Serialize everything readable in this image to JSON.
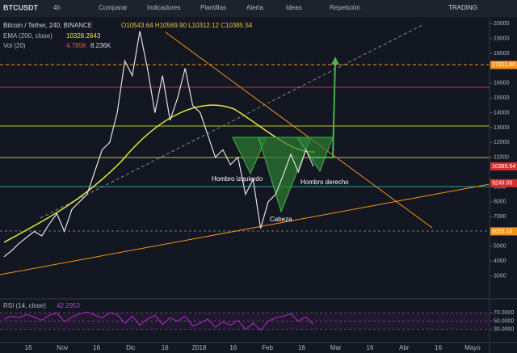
{
  "toolbar": {
    "symbol": "BTCUSDT",
    "interval": "4h",
    "items": [
      "Comparar",
      "Indicadores",
      "Plantillas",
      "Alerta",
      "Ideas",
      "Repetición"
    ],
    "brand": "TRADING"
  },
  "legend": {
    "title": "Bitcoin / Tether, 240, BINANCE",
    "ohlc": "O10543.64 H10569.90 L10312.12 C10385.54",
    "ema": "EMA (200, close)",
    "ema_value": "10328.2643",
    "vol": "Vol (20)",
    "vol_values": [
      "4.785K",
      "8.236K"
    ]
  },
  "annotations": [
    "Hombro izquierdo",
    "Cabeza",
    "Hombro derecho"
  ],
  "time_axis": [
    "16",
    "Nov",
    "16",
    "Dic",
    "16",
    "2018",
    "16",
    "Feb",
    "16",
    "Mar",
    "16",
    "Abr",
    "16",
    "Mayo"
  ],
  "chart_data": [
    {
      "type": "line",
      "color": "#e0e0e0",
      "ylim": [
        2000,
        20400
      ],
      "yticks": [
        20000,
        19000,
        18000,
        16000,
        15000,
        14000,
        13000,
        12000,
        11000,
        9000,
        8000,
        7000,
        5000,
        4000,
        3000
      ],
      "price_labels": [
        {
          "value": 17221,
          "label": "17221.00"
        },
        {
          "value": 10385.54,
          "label": "10385.54"
        },
        {
          "value": 9249,
          "label": "9249.00"
        },
        {
          "value": 6005.14,
          "label": "6005.14"
        }
      ],
      "values": [
        4300,
        4700,
        5200,
        5600,
        6000,
        5700,
        6500,
        7200,
        6000,
        7500,
        8000,
        8500,
        10000,
        11500,
        12000,
        14000,
        17500,
        16500,
        19500,
        17000,
        14000,
        16500,
        13500,
        15000,
        17000,
        14500,
        14000,
        12500,
        11000,
        11500,
        10500,
        11000,
        8500,
        9500,
        6200,
        8000,
        8500,
        9800,
        11200,
        10000,
        11500,
        10385.54
      ]
    },
    {
      "type": "line",
      "title": "RSI (14, close)",
      "value_label": "42.2953",
      "color": "#9c27b0",
      "ylim": [
        0,
        100
      ],
      "yticks": [
        {
          "value": 70,
          "label": "70.0000"
        },
        {
          "value": 50,
          "label": "50.0000"
        },
        {
          "value": 30,
          "label": "30.0000"
        }
      ],
      "values": [
        55,
        62,
        58,
        66,
        60,
        52,
        64,
        70,
        48,
        60,
        67,
        72,
        65,
        58,
        70,
        66,
        45,
        62,
        40,
        55,
        64,
        42,
        58,
        50,
        62,
        38,
        45,
        55,
        35,
        48,
        40,
        52,
        30,
        45,
        28,
        50,
        58,
        62,
        68,
        50,
        60,
        42.2953
      ]
    }
  ]
}
